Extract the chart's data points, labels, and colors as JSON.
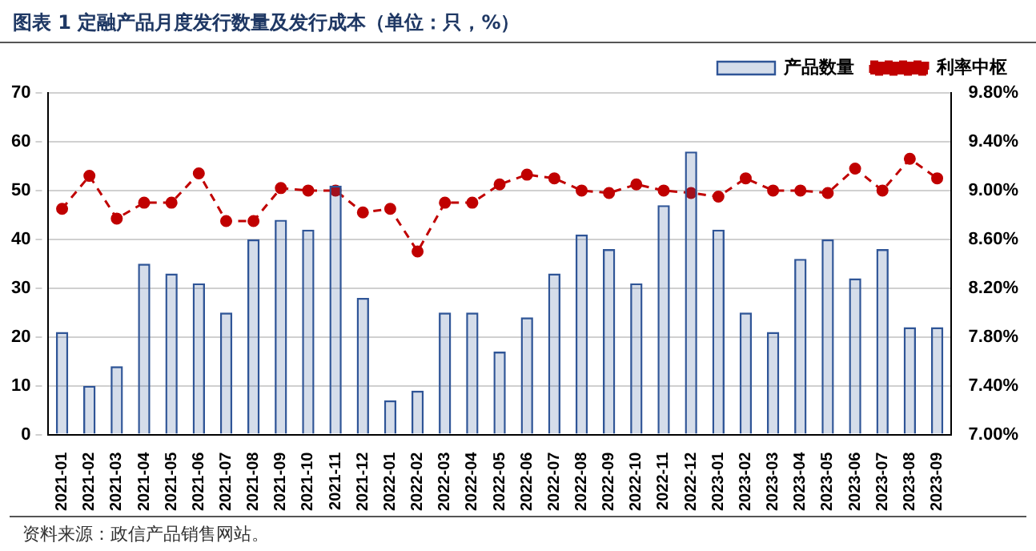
{
  "chart_data": {
    "type": "bar",
    "title": "图表 1  定融产品月度发行数量及发行成本（单位：只，%）",
    "annotations": [
      "资料来源：政信产品销售网站。"
    ],
    "categories": [
      "2021-01",
      "2021-02",
      "2021-03",
      "2021-04",
      "2021-05",
      "2021-06",
      "2021-07",
      "2021-08",
      "2021-09",
      "2021-10",
      "2021-11",
      "2021-12",
      "2022-01",
      "2022-02",
      "2022-03",
      "2022-04",
      "2022-05",
      "2022-06",
      "2022-07",
      "2022-08",
      "2022-09",
      "2022-10",
      "2022-11",
      "2022-12",
      "2023-01",
      "2023-02",
      "2023-03",
      "2023-04",
      "2023-05",
      "2023-06",
      "2023-07",
      "2023-08",
      "2023-09"
    ],
    "series": [
      {
        "name": "产品数量",
        "color": "#2f5597",
        "values": [
          21,
          10,
          14,
          35,
          33,
          31,
          25,
          40,
          44,
          42,
          51,
          28,
          7,
          9,
          25,
          25,
          17,
          24,
          33,
          41,
          38,
          31,
          47,
          58,
          42,
          25,
          21,
          36,
          40,
          32,
          38,
          22,
          22
        ]
      },
      {
        "name": "利率中枢",
        "type": "line",
        "axis": "y2",
        "color": "#c00000",
        "line_style": "dashed",
        "marker": "circle",
        "values": [
          8.85,
          9.12,
          8.77,
          8.9,
          8.9,
          9.14,
          8.75,
          8.75,
          9.02,
          9.0,
          9.0,
          8.82,
          8.85,
          8.5,
          8.9,
          8.9,
          9.05,
          9.13,
          9.1,
          9.0,
          8.98,
          9.05,
          9.0,
          8.98,
          8.95,
          9.1,
          9.0,
          9.0,
          8.98,
          9.18,
          9.0,
          9.26,
          9.1
        ]
      }
    ],
    "ylim": [
      0,
      70
    ],
    "yticks": [
      0,
      10,
      20,
      30,
      40,
      50,
      60,
      70
    ],
    "y2lim": [
      7.0,
      9.8
    ],
    "y2ticks": [
      {
        "value": 7.0,
        "label": "7.00%"
      },
      {
        "value": 7.4,
        "label": "7.40%"
      },
      {
        "value": 7.8,
        "label": "7.80%"
      },
      {
        "value": 8.2,
        "label": "8.20%"
      },
      {
        "value": 8.6,
        "label": "8.60%"
      },
      {
        "value": 9.0,
        "label": "9.00%"
      },
      {
        "value": 9.4,
        "label": "9.40%"
      },
      {
        "value": 9.8,
        "label": "9.80%"
      }
    ],
    "grid": "y",
    "legend": "top right"
  }
}
